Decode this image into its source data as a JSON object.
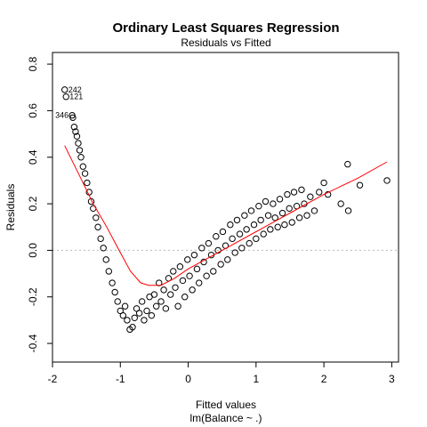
{
  "chart_data": {
    "type": "scatter",
    "title": "Ordinary Least Squares Regression",
    "subtitle": "Residuals vs Fitted",
    "xlabel": "Fitted values",
    "xlabel2": "lm(Balance ~ .)",
    "ylabel": "Residuals",
    "xlim": [
      -2.0,
      3.1
    ],
    "ylim": [
      -0.48,
      0.85
    ],
    "xticks": [
      -2,
      -1,
      0,
      1,
      2,
      3
    ],
    "yticks": [
      -0.4,
      -0.2,
      0.0,
      0.2,
      0.4,
      0.6,
      0.8
    ],
    "xtick_labels": [
      "-2",
      "-1",
      "0",
      "1",
      "2",
      "3"
    ],
    "ytick_labels": [
      "-0.4",
      "-0.2",
      "0.0",
      "0.2",
      "0.4",
      "0.6",
      "0.8"
    ],
    "reference_line_y": 0.0,
    "smooth_color": "#ff0000",
    "points": [
      [
        -1.82,
        0.69
      ],
      [
        -1.8,
        0.66
      ],
      [
        -1.71,
        0.58
      ],
      [
        -1.7,
        0.57
      ],
      [
        -1.68,
        0.53
      ],
      [
        -1.66,
        0.51
      ],
      [
        -1.64,
        0.49
      ],
      [
        -1.62,
        0.46
      ],
      [
        -1.6,
        0.43
      ],
      [
        -1.58,
        0.4
      ],
      [
        -1.55,
        0.36
      ],
      [
        -1.52,
        0.33
      ],
      [
        -1.49,
        0.29
      ],
      [
        -1.46,
        0.25
      ],
      [
        -1.43,
        0.21
      ],
      [
        -1.4,
        0.18
      ],
      [
        -1.36,
        0.14
      ],
      [
        -1.33,
        0.1
      ],
      [
        -1.29,
        0.05
      ],
      [
        -1.25,
        0.01
      ],
      [
        -1.21,
        -0.04
      ],
      [
        -1.17,
        -0.09
      ],
      [
        -1.12,
        -0.14
      ],
      [
        -1.08,
        -0.18
      ],
      [
        -1.04,
        -0.22
      ],
      [
        -1.0,
        -0.26
      ],
      [
        -0.96,
        -0.28
      ],
      [
        -0.93,
        -0.24
      ],
      [
        -0.9,
        -0.3
      ],
      [
        -0.86,
        -0.34
      ],
      [
        -0.82,
        -0.33
      ],
      [
        -0.79,
        -0.29
      ],
      [
        -0.76,
        -0.25
      ],
      [
        -0.72,
        -0.27
      ],
      [
        -0.68,
        -0.22
      ],
      [
        -0.65,
        -0.3
      ],
      [
        -0.61,
        -0.26
      ],
      [
        -0.57,
        -0.2
      ],
      [
        -0.54,
        -0.28
      ],
      [
        -0.5,
        -0.19
      ],
      [
        -0.47,
        -0.24
      ],
      [
        -0.43,
        -0.14
      ],
      [
        -0.4,
        -0.22
      ],
      [
        -0.36,
        -0.17
      ],
      [
        -0.33,
        -0.25
      ],
      [
        -0.29,
        -0.12
      ],
      [
        -0.26,
        -0.19
      ],
      [
        -0.22,
        -0.09
      ],
      [
        -0.19,
        -0.16
      ],
      [
        -0.15,
        -0.24
      ],
      [
        -0.12,
        -0.07
      ],
      [
        -0.08,
        -0.13
      ],
      [
        -0.05,
        -0.2
      ],
      [
        -0.01,
        -0.04
      ],
      [
        0.02,
        -0.11
      ],
      [
        0.06,
        -0.17
      ],
      [
        0.09,
        -0.02
      ],
      [
        0.13,
        -0.08
      ],
      [
        0.16,
        -0.14
      ],
      [
        0.2,
        0.01
      ],
      [
        0.23,
        -0.05
      ],
      [
        0.27,
        -0.11
      ],
      [
        0.3,
        0.03
      ],
      [
        0.34,
        -0.02
      ],
      [
        0.37,
        -0.09
      ],
      [
        0.41,
        0.06
      ],
      [
        0.44,
        0.0
      ],
      [
        0.48,
        -0.06
      ],
      [
        0.51,
        0.08
      ],
      [
        0.55,
        0.02
      ],
      [
        0.58,
        -0.04
      ],
      [
        0.62,
        0.11
      ],
      [
        0.65,
        0.05
      ],
      [
        0.69,
        -0.01
      ],
      [
        0.72,
        0.13
      ],
      [
        0.76,
        0.07
      ],
      [
        0.79,
        0.01
      ],
      [
        0.83,
        0.15
      ],
      [
        0.86,
        0.09
      ],
      [
        0.9,
        0.03
      ],
      [
        0.93,
        0.17
      ],
      [
        0.97,
        0.11
      ],
      [
        1.0,
        0.05
      ],
      [
        1.04,
        0.19
      ],
      [
        1.07,
        0.13
      ],
      [
        1.11,
        0.07
      ],
      [
        1.14,
        0.21
      ],
      [
        1.18,
        0.15
      ],
      [
        1.21,
        0.09
      ],
      [
        1.25,
        0.2
      ],
      [
        1.28,
        0.14
      ],
      [
        1.32,
        0.1
      ],
      [
        1.35,
        0.22
      ],
      [
        1.39,
        0.16
      ],
      [
        1.42,
        0.11
      ],
      [
        1.46,
        0.24
      ],
      [
        1.49,
        0.18
      ],
      [
        1.53,
        0.12
      ],
      [
        1.56,
        0.25
      ],
      [
        1.6,
        0.19
      ],
      [
        1.64,
        0.14
      ],
      [
        1.67,
        0.26
      ],
      [
        1.71,
        0.2
      ],
      [
        1.75,
        0.15
      ],
      [
        1.8,
        0.23
      ],
      [
        1.86,
        0.17
      ],
      [
        1.93,
        0.25
      ],
      [
        2.0,
        0.29
      ],
      [
        2.06,
        0.24
      ],
      [
        2.25,
        0.2
      ],
      [
        2.35,
        0.37
      ],
      [
        2.36,
        0.17
      ],
      [
        2.53,
        0.28
      ],
      [
        2.93,
        0.3
      ]
    ],
    "labeled_points": [
      {
        "id": "242",
        "x": -1.82,
        "y": 0.69
      },
      {
        "id": "121",
        "x": -1.8,
        "y": 0.66
      },
      {
        "id": "346",
        "x": -1.71,
        "y": 0.58
      }
    ],
    "smooth_line": [
      [
        -1.82,
        0.45
      ],
      [
        -1.6,
        0.32
      ],
      [
        -1.4,
        0.2
      ],
      [
        -1.2,
        0.1
      ],
      [
        -1.0,
        -0.01
      ],
      [
        -0.85,
        -0.09
      ],
      [
        -0.7,
        -0.14
      ],
      [
        -0.58,
        -0.15
      ],
      [
        -0.4,
        -0.15
      ],
      [
        -0.2,
        -0.12
      ],
      [
        0.0,
        -0.08
      ],
      [
        0.5,
        0.0
      ],
      [
        1.0,
        0.08
      ],
      [
        1.5,
        0.16
      ],
      [
        2.0,
        0.24
      ],
      [
        2.5,
        0.31
      ],
      [
        2.93,
        0.38
      ]
    ]
  }
}
